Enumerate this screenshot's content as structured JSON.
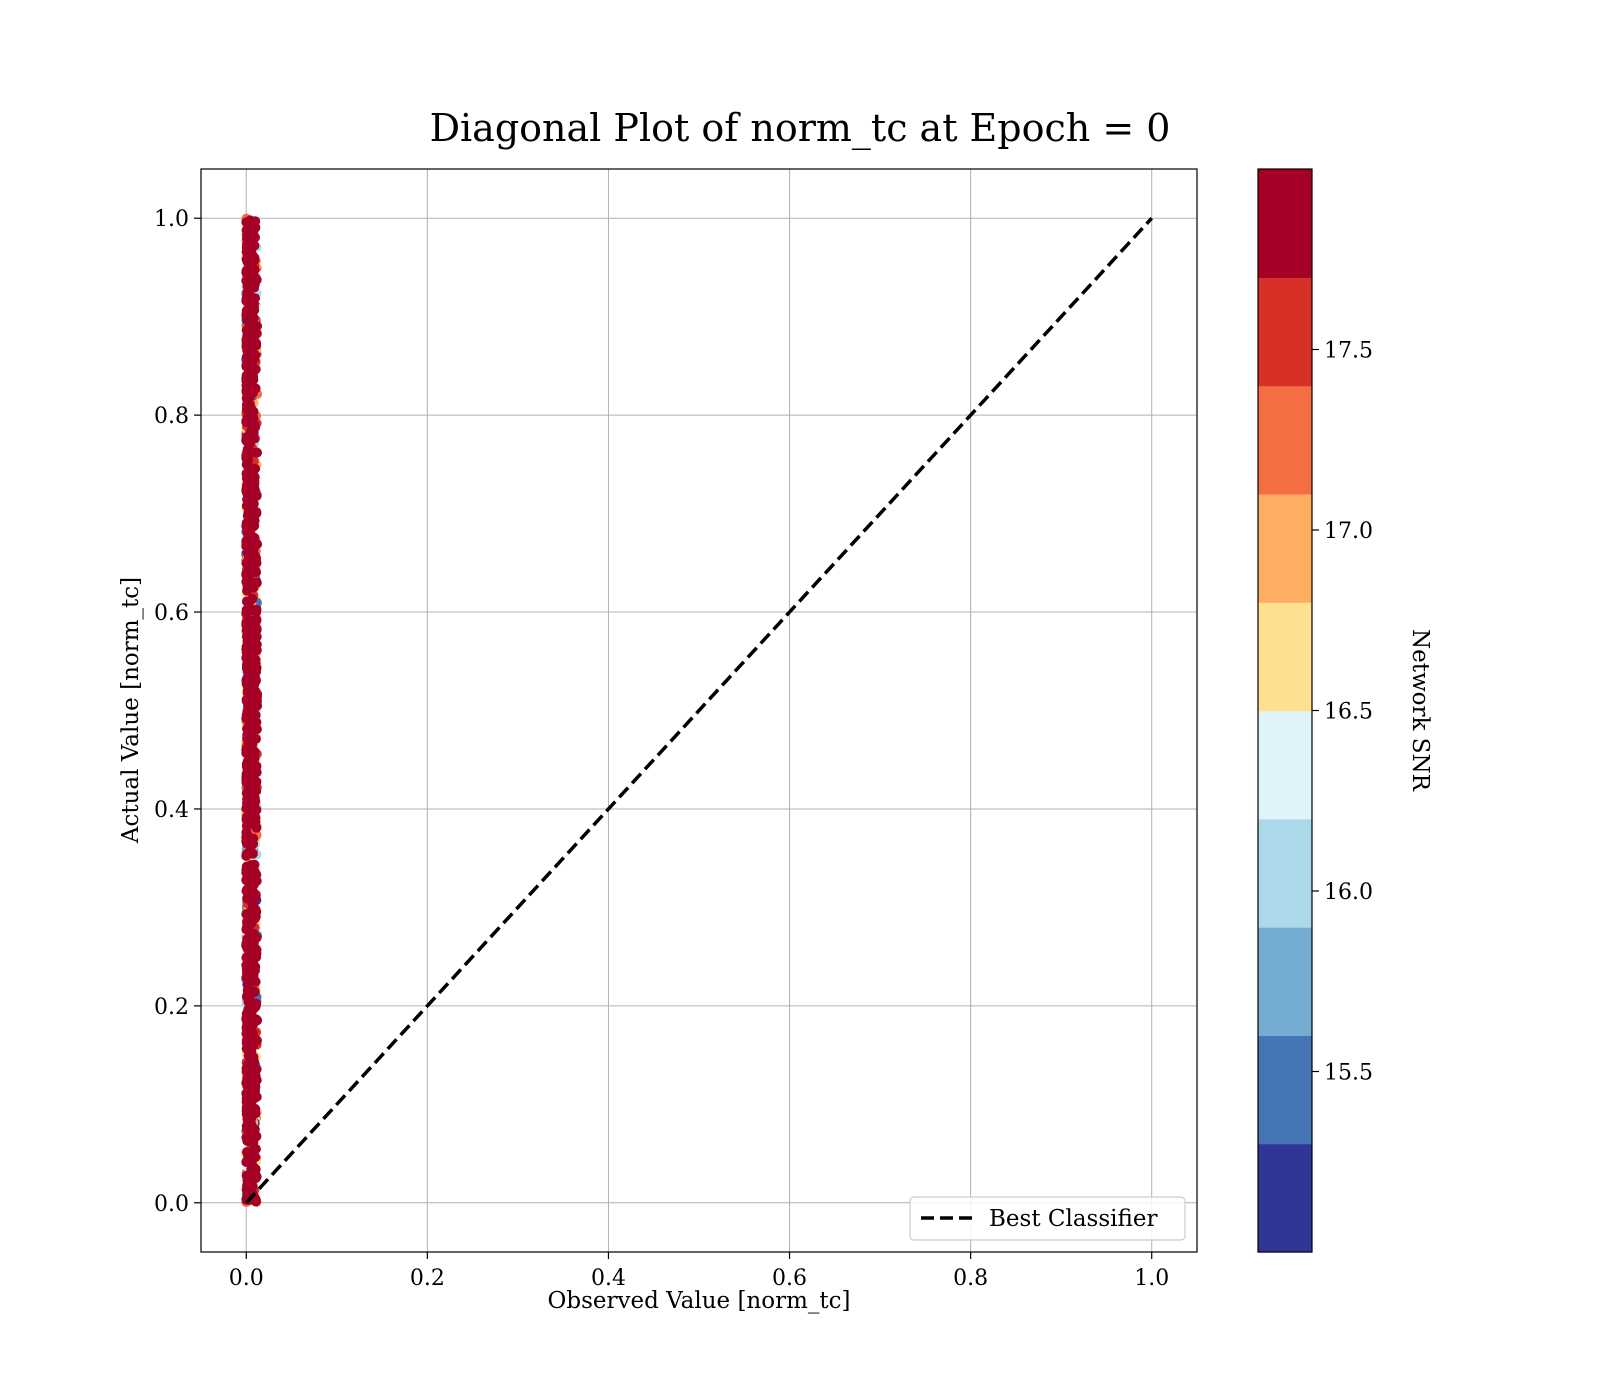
{
  "chart_data": {
    "type": "scatter",
    "title": "Diagonal Plot of norm_tc at Epoch = 0",
    "xlabel": "Observed Value [norm_tc]",
    "ylabel": "Actual Value [norm_tc]",
    "xlim": [
      -0.05,
      1.05
    ],
    "ylim": [
      -0.05,
      1.05
    ],
    "xticks": [
      "0.0",
      "0.2",
      "0.4",
      "0.6",
      "0.8",
      "1.0"
    ],
    "yticks": [
      "0.0",
      "0.2",
      "0.4",
      "0.6",
      "0.8",
      "1.0"
    ],
    "grid": true,
    "points": {
      "x_range": [
        0.0,
        0.012
      ],
      "y_range": [
        0.0,
        1.0
      ],
      "color_by": "Network SNR"
    },
    "reference_line": {
      "name": "Best Classifier",
      "style": "dashed",
      "color": "#000000",
      "x": [
        0.0,
        1.0
      ],
      "y": [
        0.0,
        1.0
      ]
    },
    "legend": {
      "placement": "lower-right",
      "entries": [
        "Best Classifier"
      ]
    },
    "colorbar": {
      "label": "Network SNR",
      "range": [
        15.0,
        18.0
      ],
      "ticks": [
        "15.5",
        "16.0",
        "16.5",
        "17.0",
        "17.5"
      ],
      "colors": [
        "#313695",
        "#4575b4",
        "#74add1",
        "#abd9e9",
        "#e0f3f8",
        "#fee090",
        "#fdae61",
        "#f46d43",
        "#d73027",
        "#a50026"
      ]
    }
  }
}
